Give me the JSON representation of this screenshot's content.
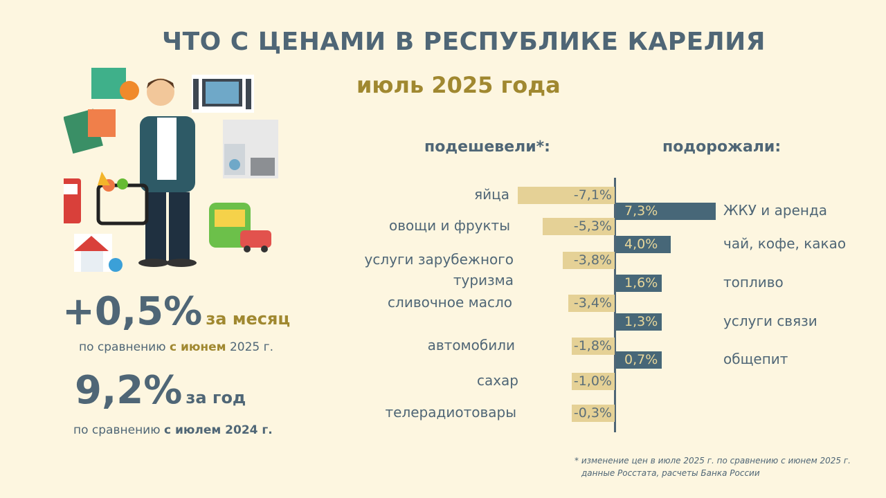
{
  "title": "ЧТО С ЦЕНАМИ В РЕСПУБЛИКЕ КАРЕЛИЯ",
  "subtitle": "июль 2025 года",
  "summary": {
    "month_value": "+0,5%",
    "month_label": "за месяц",
    "month_compare_prefix": "по сравнению ",
    "month_compare_bold": "с июнем",
    "month_compare_suffix": " 2025 г.",
    "year_value": "9,2%",
    "year_label": "за год",
    "year_compare_prefix": "по сравнению ",
    "year_compare_bold": "с июлем 2024 г."
  },
  "chart_data": {
    "type": "bar",
    "orientation": "horizontal",
    "colors": {
      "cheaper": "#e5d196",
      "pricier": "#476778"
    },
    "groups": [
      {
        "title": "подешевели*:",
        "categories": [
          "яйца",
          "овощи и фрукты",
          "услуги зарубежного туризма",
          "сливочное масло",
          "автомобили",
          "сахар",
          "телерадиотовары"
        ],
        "values": [
          -7.1,
          -5.3,
          -3.8,
          -3.4,
          -1.8,
          -1.0,
          -0.3
        ],
        "labels": [
          "-7,1%",
          "-5,3%",
          "-3,8%",
          "-3,4%",
          "-1,8%",
          "-1,0%",
          "-0,3%"
        ]
      },
      {
        "title": "подорожали:",
        "categories": [
          "ЖКУ и аренда",
          "чай, кофе, какао",
          "топливо",
          "услуги связи",
          "общепит"
        ],
        "values": [
          7.3,
          4.0,
          1.6,
          1.3,
          0.7
        ],
        "labels": [
          "7,3%",
          "4,0%",
          "1,6%",
          "1,3%",
          "0,7%"
        ]
      }
    ]
  },
  "footnote": {
    "line1": "* изменение цен в июле 2025 г. по сравнению с июнем 2025 г.",
    "line2": "данные Росстата, расчеты Банка России"
  }
}
